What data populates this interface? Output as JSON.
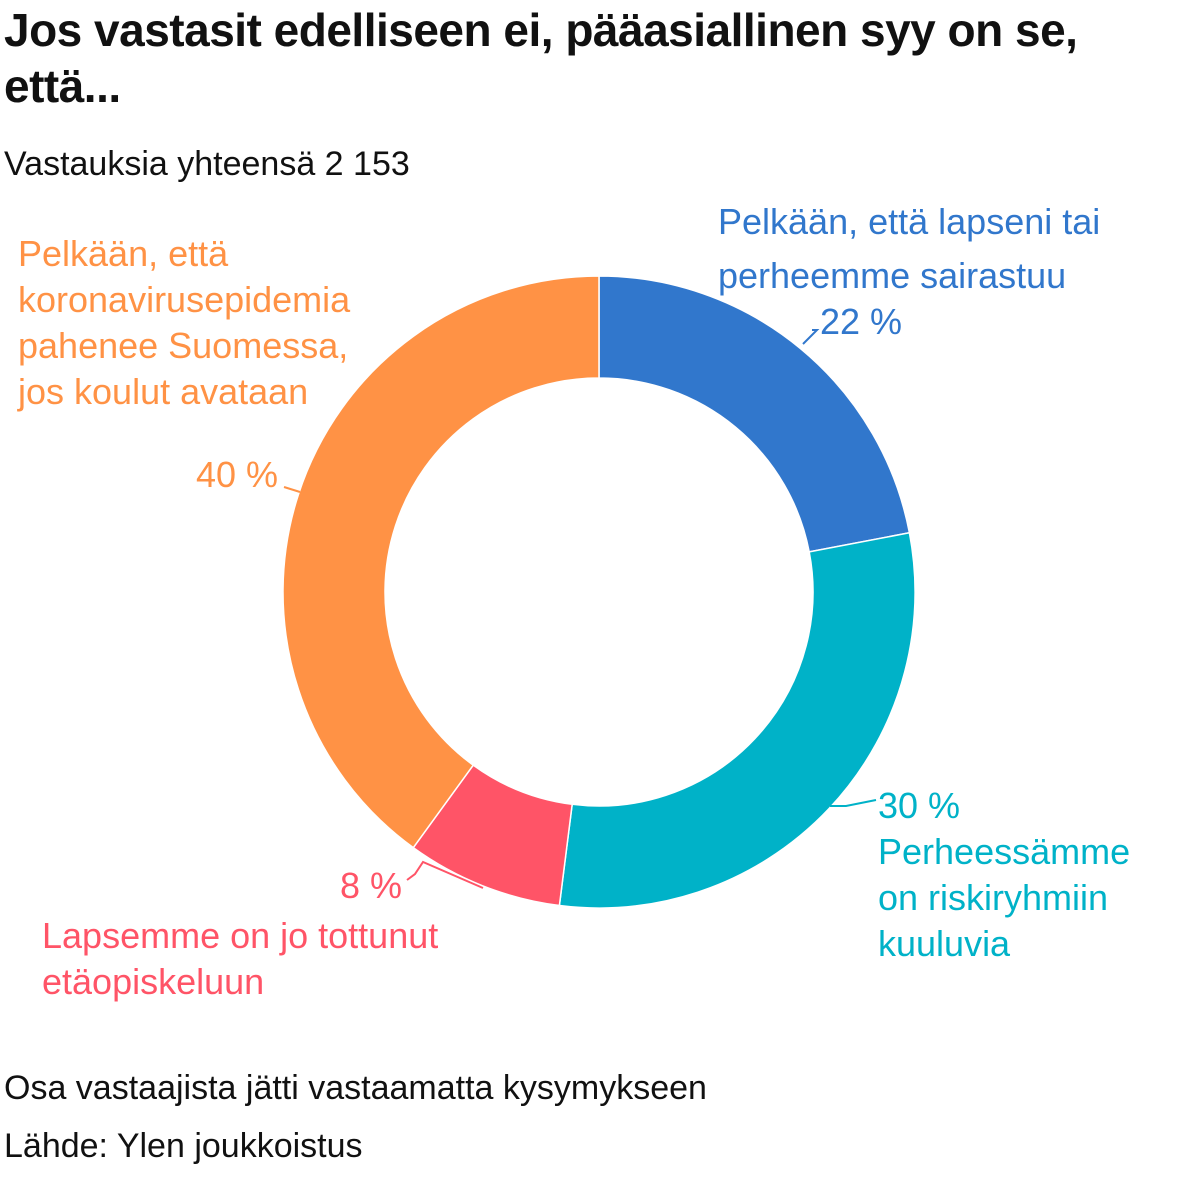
{
  "title": "Jos vastasit edelliseen ei, pääasiallinen syy on se, että...",
  "subtitle": "Vastauksia yhteensä 2 153",
  "footer": {
    "note": "Osa vastaajista jätti vastaamatta kysymykseen",
    "source": "Lähde: Ylen joukkoistus"
  },
  "chart_data": {
    "type": "pie",
    "variant": "donut",
    "title": "Jos vastasit edelliseen ei, pääasiallinen syy on se, että...",
    "subtitle": "Vastauksia yhteensä 2 153",
    "unit": "%",
    "slices": [
      {
        "category": "Pelkään, että lapseni tai perheemme sairastuu",
        "label_lines": [
          "Pelkään, että lapseni tai",
          "perheemme sairastuu"
        ],
        "value": 22,
        "value_label": "22 %",
        "color": "#3177cc"
      },
      {
        "category": "Perheessämme on riskiryhmiin kuuluvia",
        "label_lines": [
          "Perheessämme",
          "on riskiryhmiin",
          "kuuluvia"
        ],
        "value": 30,
        "value_label": "30 %",
        "color": "#00b2c8"
      },
      {
        "category": "Lapsemme on jo tottunut etäopiskeluun",
        "label_lines": [
          "Lapsemme on jo tottunut",
          "etäopiskeluun"
        ],
        "value": 8,
        "value_label": "8 %",
        "color": "#ff5467"
      },
      {
        "category": "Pelkään, että koronavirusepidemia pahenee Suomessa, jos koulut avataan",
        "label_lines": [
          "Pelkään, että",
          "koronavirusepidemia",
          "pahenee Suomessa,",
          "jos koulut avataan"
        ],
        "value": 40,
        "value_label": "40 %",
        "color": "#ff9245"
      }
    ],
    "start_angle": "top",
    "direction": "clockwise",
    "legend": "none (direct labels)"
  }
}
